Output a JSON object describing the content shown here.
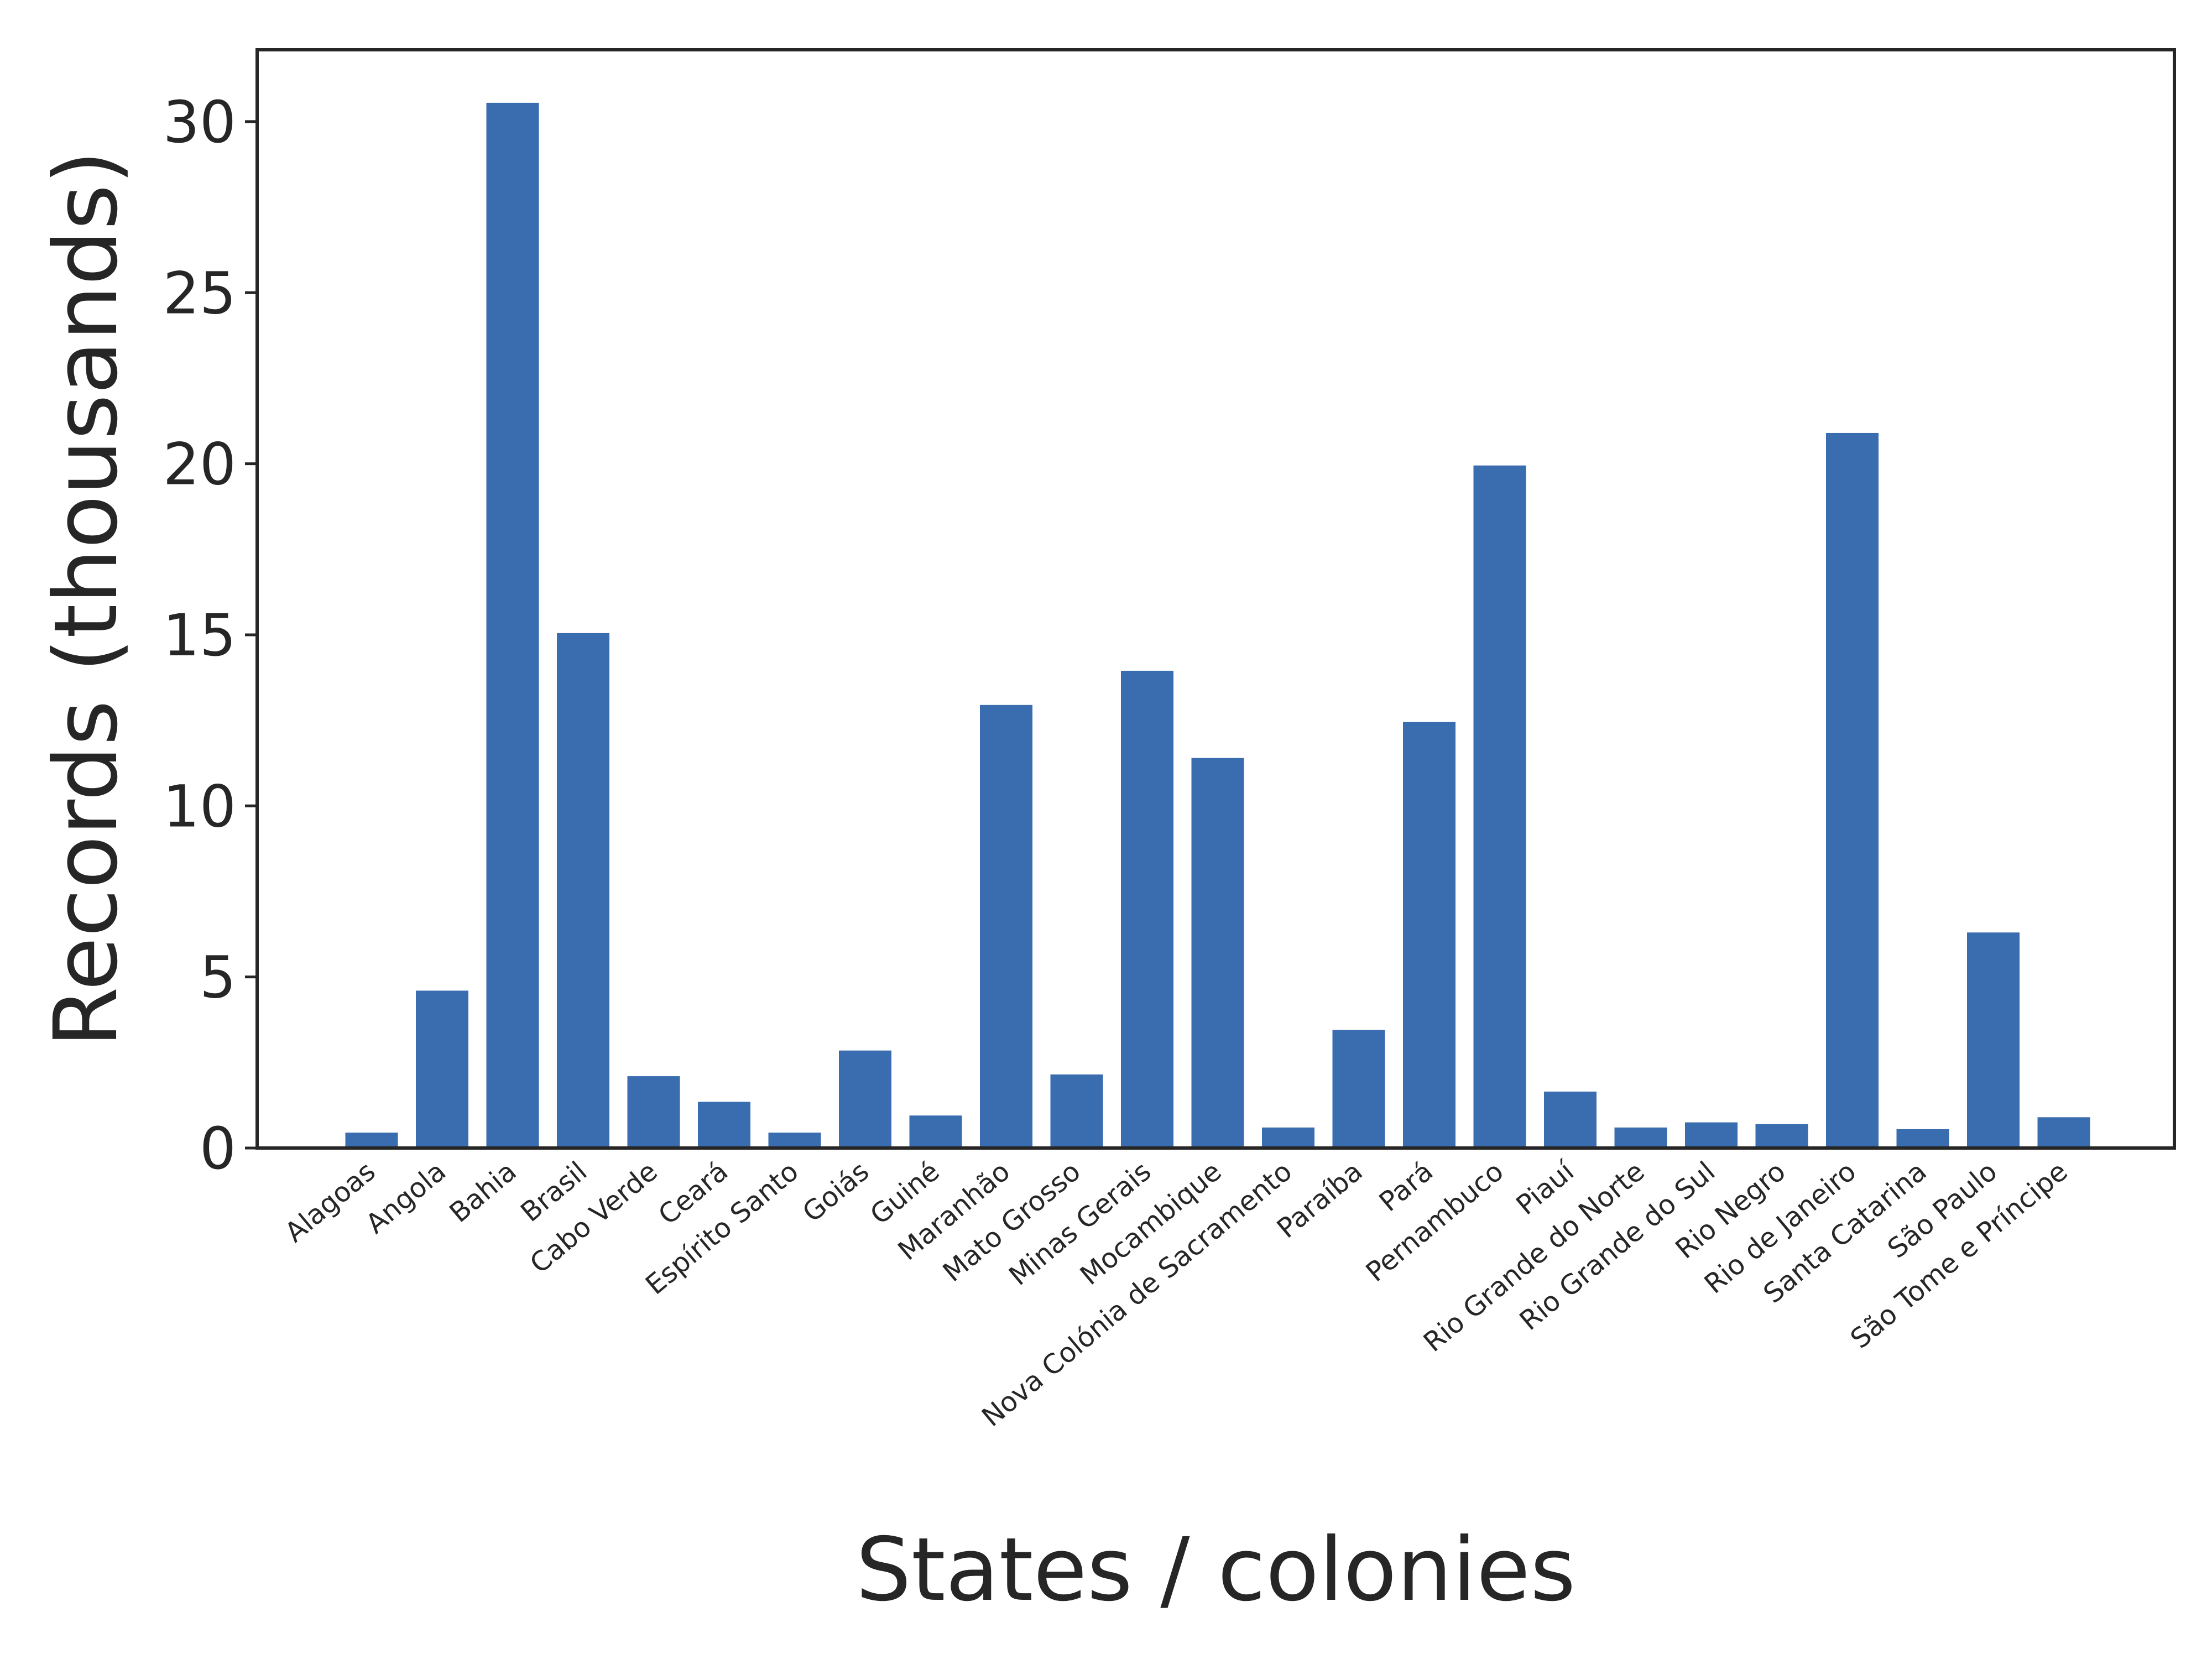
{
  "chart_data": {
    "type": "bar",
    "title": "",
    "xlabel": "States / colonies",
    "ylabel": "Records (thousands)",
    "ylim": [
      0,
      32.1
    ],
    "yticks": [
      0,
      5,
      10,
      15,
      20,
      25,
      30
    ],
    "grid": false,
    "legend": "none",
    "bar_color": "#3a6cb0",
    "categories": [
      "Alagoas",
      "Angola",
      "Bahia",
      "Brasil",
      "Cabo Verde",
      "Ceará",
      "Espírito Santo",
      "Goiás",
      "Guiné",
      "Maranhão",
      "Mato Grosso",
      "Minas Gerais",
      "Mocambique",
      "Nova Colónia de Sacramento",
      "Paraíba",
      "Pará",
      "Pernambuco",
      "Piauí",
      "Rio Grande do Norte",
      "Rio Grande do Sul",
      "Rio Negro",
      "Rio de Janeiro",
      "Santa Catarina",
      "São Paulo",
      "São Tome e Príncipe"
    ],
    "values": [
      0.45,
      4.6,
      30.55,
      15.05,
      2.1,
      1.35,
      0.45,
      2.85,
      0.95,
      12.95,
      2.15,
      13.95,
      11.4,
      0.6,
      3.45,
      12.45,
      19.95,
      1.65,
      0.6,
      0.75,
      0.7,
      20.9,
      0.55,
      6.3,
      0.9
    ]
  }
}
